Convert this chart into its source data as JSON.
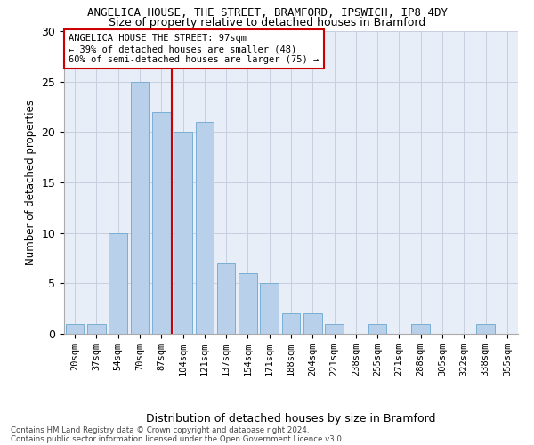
{
  "title": "ANGELICA HOUSE, THE STREET, BRAMFORD, IPSWICH, IP8 4DY",
  "subtitle": "Size of property relative to detached houses in Bramford",
  "xlabel": "Distribution of detached houses by size in Bramford",
  "ylabel": "Number of detached properties",
  "bin_labels": [
    "20sqm",
    "37sqm",
    "54sqm",
    "70sqm",
    "87sqm",
    "104sqm",
    "121sqm",
    "137sqm",
    "154sqm",
    "171sqm",
    "188sqm",
    "204sqm",
    "221sqm",
    "238sqm",
    "255sqm",
    "271sqm",
    "288sqm",
    "305sqm",
    "322sqm",
    "338sqm",
    "355sqm"
  ],
  "bin_values": [
    1,
    1,
    10,
    25,
    22,
    20,
    21,
    7,
    6,
    5,
    2,
    2,
    1,
    0,
    1,
    0,
    1,
    0,
    0,
    1,
    0
  ],
  "bar_color": "#b8d0ea",
  "bar_edge_color": "#7aaed4",
  "vline_color": "#cc0000",
  "annotation_text": "ANGELICA HOUSE THE STREET: 97sqm\n← 39% of detached houses are smaller (48)\n60% of semi-detached houses are larger (75) →",
  "annotation_box_color": "white",
  "annotation_box_edge": "#cc0000",
  "ylim": [
    0,
    30
  ],
  "yticks": [
    0,
    5,
    10,
    15,
    20,
    25,
    30
  ],
  "footer1": "Contains HM Land Registry data © Crown copyright and database right 2024.",
  "footer2": "Contains public sector information licensed under the Open Government Licence v3.0.",
  "bg_color": "#e8eef8",
  "grid_color": "#c8d0e0"
}
